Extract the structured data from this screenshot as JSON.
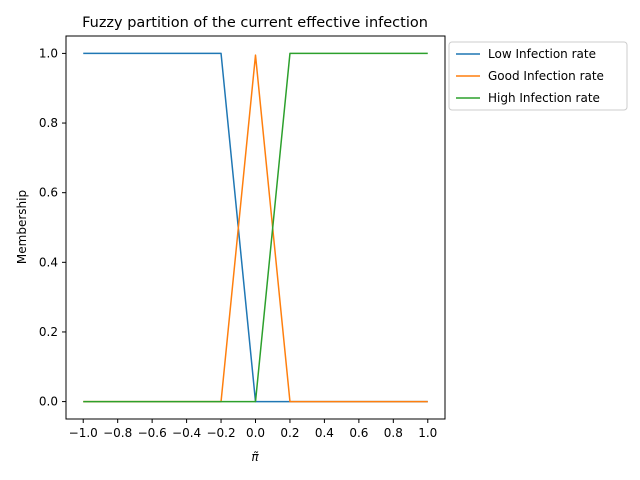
{
  "chart_data": {
    "type": "line",
    "title": "Fuzzy partition of the current effective infection",
    "xlabel": "π̃",
    "ylabel": "Membership",
    "xlim": [
      -1.1,
      1.1
    ],
    "ylim": [
      -0.05,
      1.05
    ],
    "xticks": [
      -1.0,
      -0.8,
      -0.6,
      -0.4,
      -0.2,
      0.0,
      0.2,
      0.4,
      0.6,
      0.8,
      1.0
    ],
    "yticks": [
      0.0,
      0.2,
      0.4,
      0.6,
      0.8,
      1.0
    ],
    "xtick_labels": [
      "−1.0",
      "−0.8",
      "−0.6",
      "−0.4",
      "−0.2",
      "0.0",
      "0.2",
      "0.4",
      "0.6",
      "0.8",
      "1.0"
    ],
    "ytick_labels": [
      "0.0",
      "0.2",
      "0.4",
      "0.6",
      "0.8",
      "1.0"
    ],
    "grid": false,
    "legend_position": "top-right, outside axes",
    "series": [
      {
        "name": "Low Infection rate",
        "color": "#1f77b4",
        "x": [
          -1.0,
          -0.2,
          0.0,
          0.2,
          1.0
        ],
        "y": [
          1.0,
          1.0,
          0.0,
          0.0,
          0.0
        ]
      },
      {
        "name": "Good Infection rate",
        "color": "#ff7f0e",
        "x": [
          -1.0,
          -0.2,
          0.0,
          0.2,
          1.0
        ],
        "y": [
          0.0,
          0.0,
          0.995,
          0.0,
          0.0
        ]
      },
      {
        "name": "High Infection rate",
        "color": "#2ca02c",
        "x": [
          -1.0,
          -0.2,
          0.0,
          0.2,
          1.0
        ],
        "y": [
          0.0,
          0.0,
          0.0,
          1.0,
          1.0
        ]
      }
    ]
  }
}
